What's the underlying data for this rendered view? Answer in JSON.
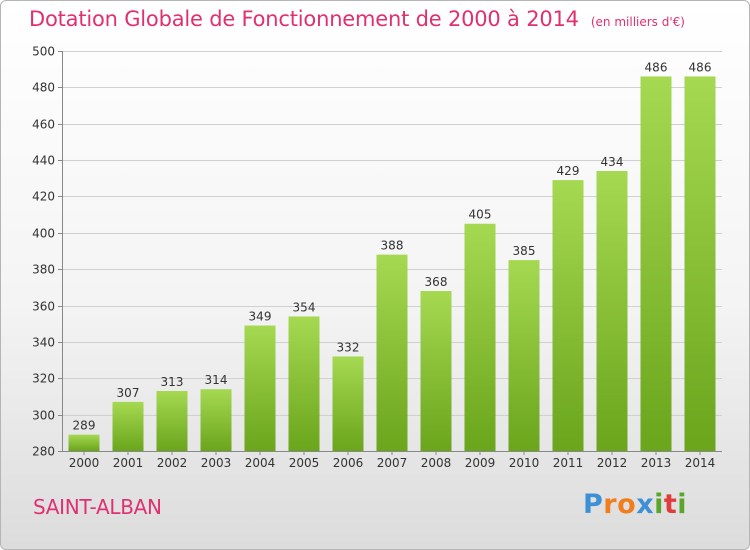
{
  "title": "Dotation Globale de Fonctionnement de 2000 à 2014",
  "unit": "(en milliers d'€)",
  "commune": "SAINT-ALBAN",
  "logo": {
    "letters": [
      "P",
      "r",
      "o",
      "x",
      "i",
      "t",
      "i"
    ],
    "colors": [
      "#3d8fd6",
      "#f07d1e",
      "#f07d1e",
      "#3d8fd6",
      "#5aa62a",
      "#e13c3c",
      "#5aa62a"
    ]
  },
  "colors": {
    "accent": "#e0306f",
    "bar_light": "#a6d952",
    "bar_dark": "#6aa51c"
  },
  "chart_data": {
    "type": "bar",
    "categories": [
      "2000",
      "2001",
      "2002",
      "2003",
      "2004",
      "2005",
      "2006",
      "2007",
      "2008",
      "2009",
      "2010",
      "2011",
      "2012",
      "2013",
      "2014"
    ],
    "values": [
      289,
      307,
      313,
      314,
      349,
      354,
      332,
      388,
      368,
      405,
      385,
      429,
      434,
      486,
      486
    ],
    "ylim": [
      280,
      500
    ],
    "yticks": [
      280,
      300,
      320,
      340,
      360,
      380,
      400,
      420,
      440,
      460,
      480,
      500
    ],
    "grid": true
  }
}
